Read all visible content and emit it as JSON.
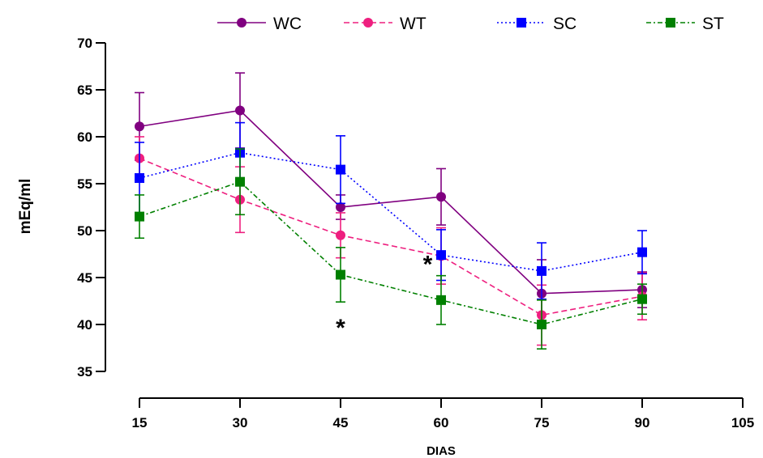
{
  "chart_data": {
    "type": "line",
    "xlabel": "DIAS",
    "ylabel": "mEq/ml",
    "xlim": [
      15,
      105
    ],
    "ylim": [
      35,
      70
    ],
    "x_ticks": [
      "15",
      "30",
      "45",
      "60",
      "75",
      "90",
      "105"
    ],
    "y_ticks": [
      "35",
      "40",
      "45",
      "50",
      "55",
      "60",
      "65",
      "70"
    ],
    "x": [
      15,
      30,
      45,
      60,
      75,
      90
    ],
    "grid": false,
    "legend_position": "top",
    "series": [
      {
        "name": "WC",
        "color": "#800080",
        "marker": "circle",
        "line": "solid",
        "values": [
          61.1,
          62.8,
          52.5,
          53.6,
          43.3,
          43.7
        ],
        "errors": [
          3.6,
          4.0,
          1.3,
          3.0,
          3.6,
          1.9
        ]
      },
      {
        "name": "WT",
        "color": "#ee1f7f",
        "marker": "circle",
        "line": "dashed",
        "values": [
          57.7,
          53.3,
          49.5,
          47.3,
          41.0,
          43.0
        ],
        "errors": [
          2.3,
          3.5,
          2.4,
          3.0,
          3.2,
          2.5
        ]
      },
      {
        "name": "SC",
        "color": "#0000ff",
        "marker": "square",
        "line": "dotted",
        "values": [
          55.6,
          58.3,
          56.5,
          47.4,
          45.7,
          47.7
        ],
        "errors": [
          3.8,
          3.2,
          3.6,
          2.7,
          3.0,
          2.3
        ]
      },
      {
        "name": "ST",
        "color": "#008000",
        "marker": "square",
        "line": "dashdot",
        "values": [
          51.5,
          55.2,
          45.3,
          42.6,
          40.0,
          42.7
        ],
        "errors": [
          2.3,
          3.5,
          2.9,
          2.6,
          2.6,
          1.6
        ]
      }
    ],
    "annotations": [
      {
        "text": "*",
        "x": 45,
        "y": 40.5
      },
      {
        "text": "*",
        "x": 58,
        "y": 47.3
      }
    ]
  }
}
